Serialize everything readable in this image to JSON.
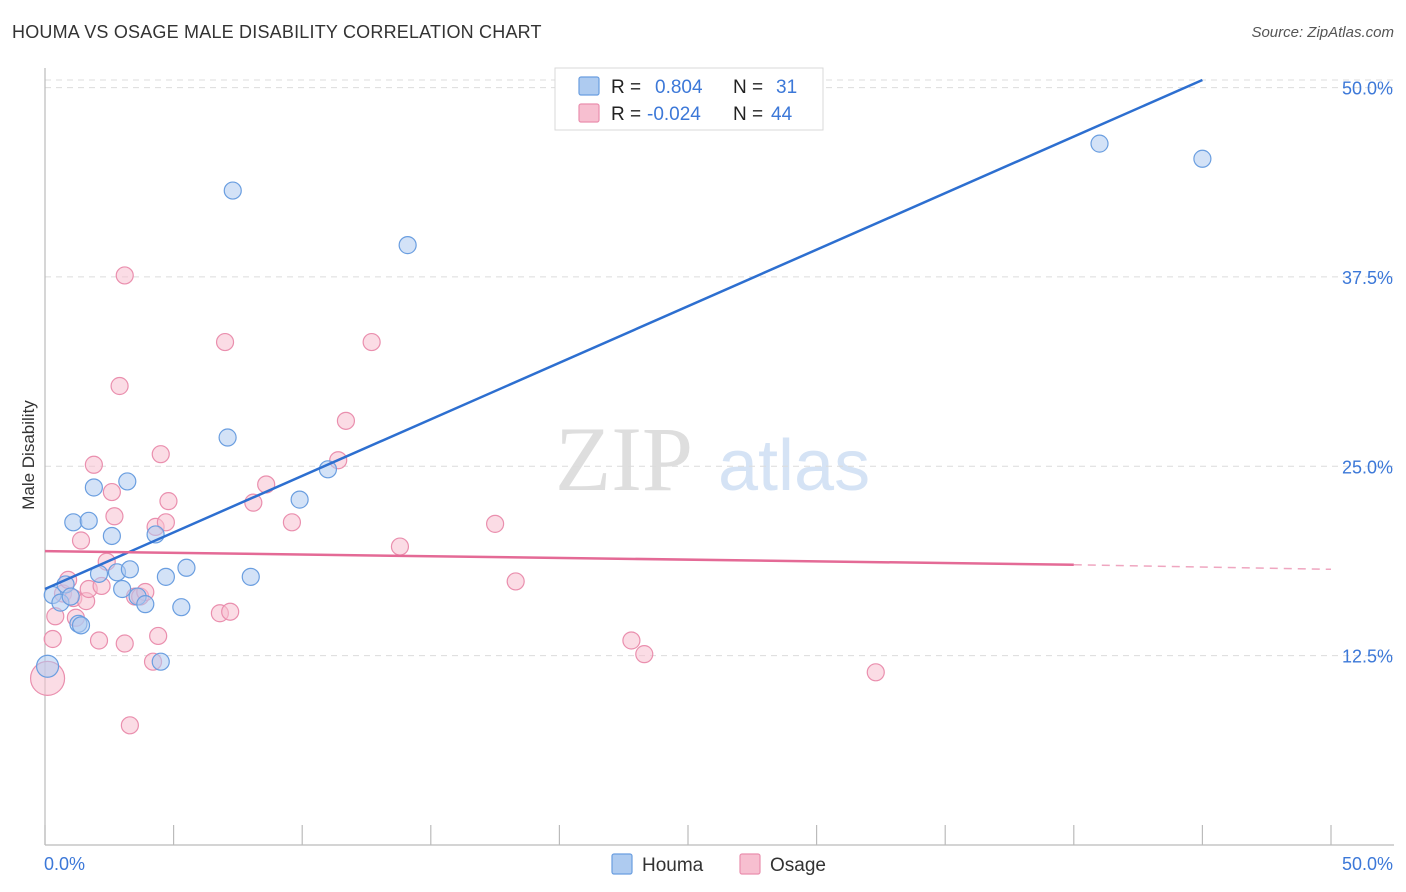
{
  "header": {
    "title": "HOUMA VS OSAGE MALE DISABILITY CORRELATION CHART",
    "source": "Source: ZipAtlas.com"
  },
  "watermark": {
    "zip": "ZIP",
    "atlas": "atlas"
  },
  "colors": {
    "houma_fill": "#aecbf0",
    "houma_stroke": "#6a9ee0",
    "houma_line": "#2d6fd0",
    "osage_fill": "#f7bfd0",
    "osage_stroke": "#ea8fae",
    "osage_line": "#e46a96",
    "axis_label": "#3c78d8",
    "grid": "#dcdcdc"
  },
  "legend": {
    "houma": {
      "r_label": "R = ",
      "r_value": "0.804",
      "n_label": "N = ",
      "n_value": "31"
    },
    "osage": {
      "r_label": "R = ",
      "r_value": "-0.024",
      "n_label": "N = ",
      "n_value": "44"
    }
  },
  "bottom_legend": {
    "houma": "Houma",
    "osage": "Osage"
  },
  "chart_data": {
    "type": "scatter",
    "title": "HOUMA VS OSAGE MALE DISABILITY CORRELATION CHART",
    "xlabel": "",
    "ylabel": "Male Disability",
    "xlim": [
      0,
      50
    ],
    "ylim": [
      0,
      50.5
    ],
    "x_tick_labels": [
      "0.0%",
      "50.0%"
    ],
    "y_ticks": [
      12.5,
      25.0,
      37.5,
      50.0
    ],
    "y_tick_labels": [
      "12.5%",
      "25.0%",
      "37.5%",
      "50.0%"
    ],
    "series": [
      {
        "name": "Houma",
        "r": 0.804,
        "n": 31,
        "trend": {
          "x": [
            0,
            45
          ],
          "y": [
            16.9,
            50.5
          ]
        },
        "points": [
          {
            "x": 0.3,
            "y": 16.5
          },
          {
            "x": 0.6,
            "y": 16.0
          },
          {
            "x": 0.8,
            "y": 17.2
          },
          {
            "x": 1.0,
            "y": 16.4
          },
          {
            "x": 1.1,
            "y": 21.3
          },
          {
            "x": 1.3,
            "y": 14.6
          },
          {
            "x": 1.4,
            "y": 14.5
          },
          {
            "x": 1.7,
            "y": 21.4
          },
          {
            "x": 1.9,
            "y": 23.6
          },
          {
            "x": 2.1,
            "y": 17.9
          },
          {
            "x": 2.6,
            "y": 20.4
          },
          {
            "x": 2.8,
            "y": 18.0
          },
          {
            "x": 3.0,
            "y": 16.9
          },
          {
            "x": 3.2,
            "y": 24.0
          },
          {
            "x": 3.3,
            "y": 18.2
          },
          {
            "x": 3.6,
            "y": 16.4
          },
          {
            "x": 3.9,
            "y": 15.9
          },
          {
            "x": 4.3,
            "y": 20.5
          },
          {
            "x": 4.5,
            "y": 12.1
          },
          {
            "x": 4.7,
            "y": 17.7
          },
          {
            "x": 5.3,
            "y": 15.7
          },
          {
            "x": 5.5,
            "y": 18.3
          },
          {
            "x": 7.1,
            "y": 26.9
          },
          {
            "x": 7.3,
            "y": 43.2
          },
          {
            "x": 8.0,
            "y": 17.7
          },
          {
            "x": 9.9,
            "y": 22.8
          },
          {
            "x": 11.0,
            "y": 24.8
          },
          {
            "x": 14.1,
            "y": 39.6
          },
          {
            "x": 41.0,
            "y": 46.3
          },
          {
            "x": 45.0,
            "y": 45.3
          },
          {
            "x": 0.1,
            "y": 11.8
          }
        ]
      },
      {
        "name": "Osage",
        "r": -0.024,
        "n": 44,
        "trend": {
          "x": [
            0,
            40
          ],
          "y": [
            19.4,
            18.5
          ]
        },
        "trend_dashed": {
          "x": [
            40,
            50
          ],
          "y": [
            18.5,
            18.2
          ]
        },
        "points": [
          {
            "x": 0.1,
            "y": 11.0
          },
          {
            "x": 0.3,
            "y": 13.6
          },
          {
            "x": 0.4,
            "y": 15.1
          },
          {
            "x": 0.7,
            "y": 16.6
          },
          {
            "x": 0.9,
            "y": 17.5
          },
          {
            "x": 1.1,
            "y": 16.3
          },
          {
            "x": 1.2,
            "y": 15.0
          },
          {
            "x": 1.4,
            "y": 20.1
          },
          {
            "x": 1.6,
            "y": 16.1
          },
          {
            "x": 1.7,
            "y": 16.9
          },
          {
            "x": 1.9,
            "y": 25.1
          },
          {
            "x": 2.1,
            "y": 13.5
          },
          {
            "x": 2.2,
            "y": 17.1
          },
          {
            "x": 2.4,
            "y": 18.7
          },
          {
            "x": 2.6,
            "y": 23.3
          },
          {
            "x": 2.7,
            "y": 21.7
          },
          {
            "x": 2.9,
            "y": 30.3
          },
          {
            "x": 3.1,
            "y": 37.6
          },
          {
            "x": 3.1,
            "y": 13.3
          },
          {
            "x": 3.3,
            "y": 7.9
          },
          {
            "x": 3.5,
            "y": 16.4
          },
          {
            "x": 3.7,
            "y": 16.4
          },
          {
            "x": 3.9,
            "y": 16.7
          },
          {
            "x": 4.2,
            "y": 12.1
          },
          {
            "x": 4.3,
            "y": 21.0
          },
          {
            "x": 4.4,
            "y": 13.8
          },
          {
            "x": 4.5,
            "y": 25.8
          },
          {
            "x": 4.7,
            "y": 21.3
          },
          {
            "x": 4.8,
            "y": 22.7
          },
          {
            "x": 6.8,
            "y": 15.3
          },
          {
            "x": 7.0,
            "y": 33.2
          },
          {
            "x": 7.2,
            "y": 15.4
          },
          {
            "x": 8.1,
            "y": 22.6
          },
          {
            "x": 8.6,
            "y": 23.8
          },
          {
            "x": 9.6,
            "y": 21.3
          },
          {
            "x": 11.4,
            "y": 25.4
          },
          {
            "x": 11.7,
            "y": 28.0
          },
          {
            "x": 12.7,
            "y": 33.2
          },
          {
            "x": 13.8,
            "y": 19.7
          },
          {
            "x": 17.5,
            "y": 21.2
          },
          {
            "x": 18.3,
            "y": 17.4
          },
          {
            "x": 22.8,
            "y": 13.5
          },
          {
            "x": 23.3,
            "y": 12.6
          },
          {
            "x": 32.3,
            "y": 11.4
          }
        ]
      }
    ]
  }
}
